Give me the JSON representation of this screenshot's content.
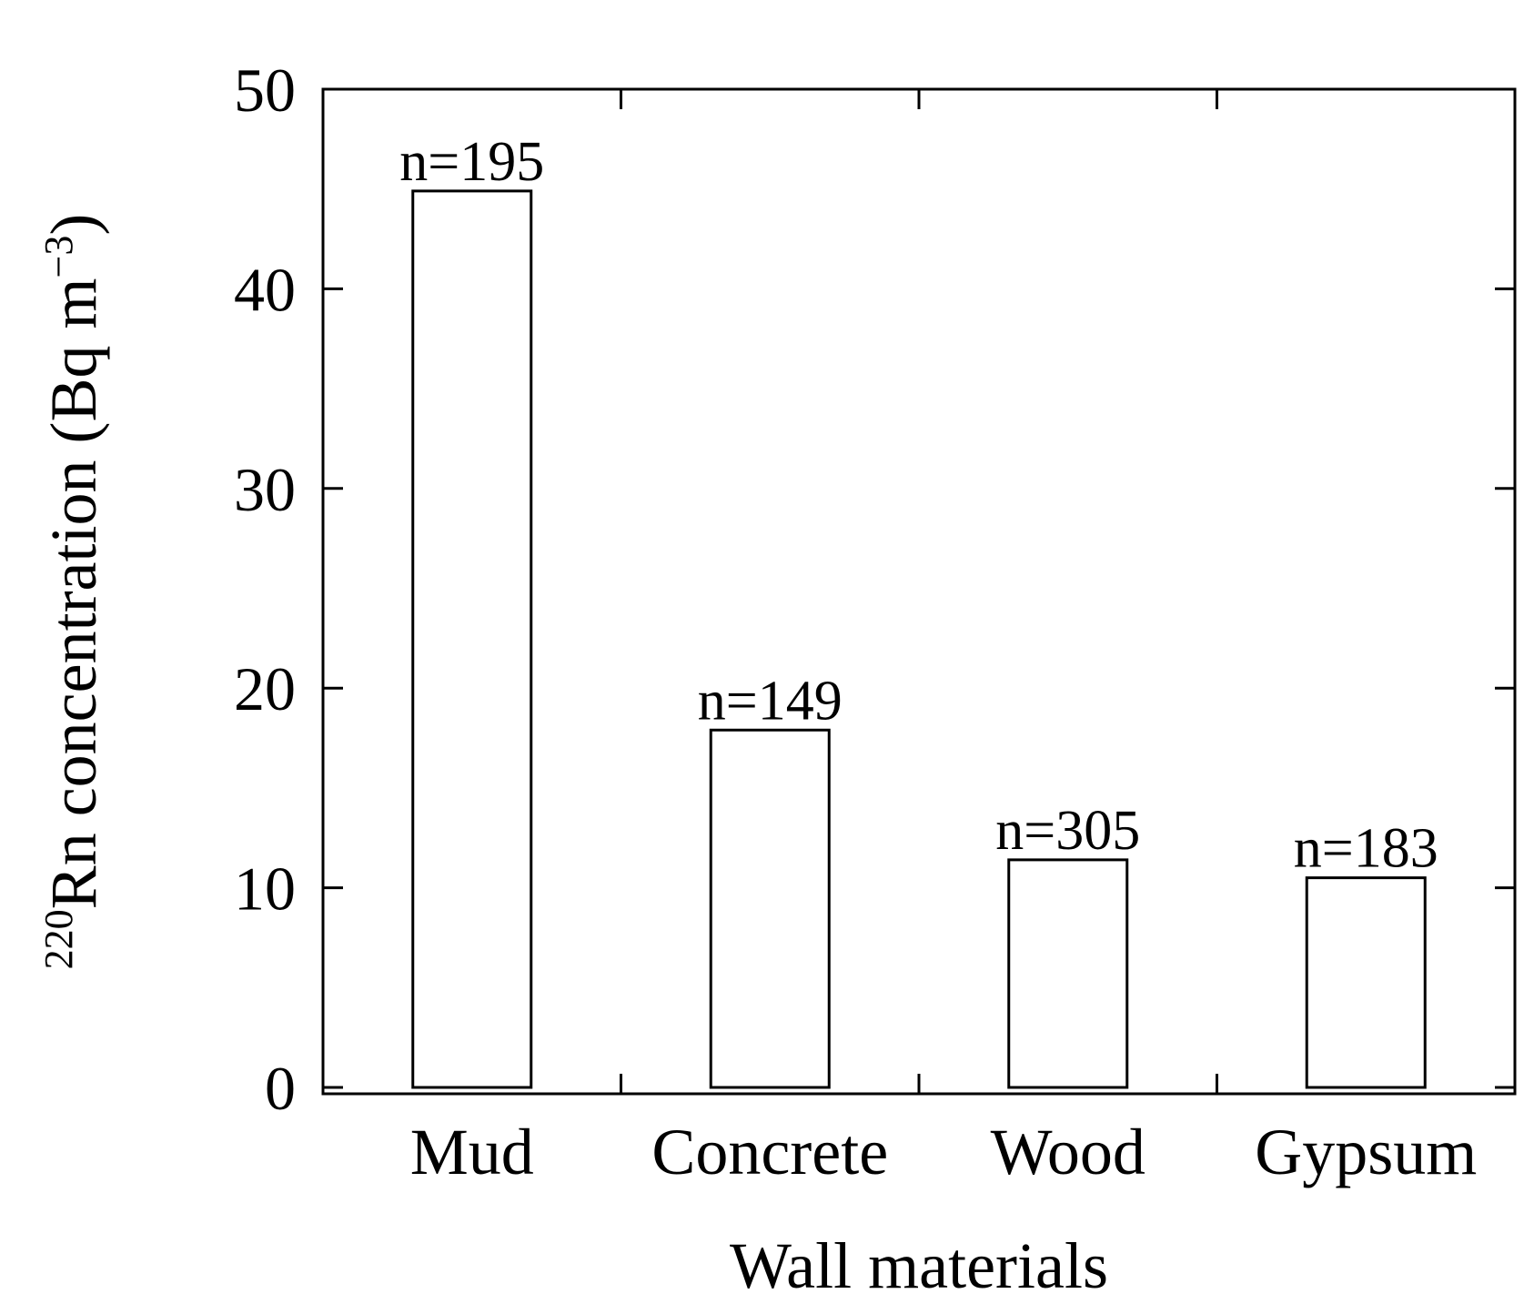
{
  "chart_data": {
    "type": "bar",
    "categories": [
      "Mud",
      "Concrete",
      "Wood",
      "Gypsum"
    ],
    "values": [
      44.9,
      17.9,
      11.4,
      10.5
    ],
    "bar_labels": [
      "n=195",
      "n=149",
      "n=305",
      "n=183"
    ],
    "xlabel": "Wall materials",
    "ylabel": {
      "superscript": "220",
      "text": "Rn concentration (Bq m",
      "unit_exponent": "−3",
      "closing": ")"
    },
    "ylim": [
      0,
      50
    ],
    "yticks": [
      0,
      10,
      20,
      30,
      40,
      50
    ],
    "grid": false,
    "legend": "none",
    "bar_fill": "#ffffff",
    "bar_stroke": "#000000"
  }
}
